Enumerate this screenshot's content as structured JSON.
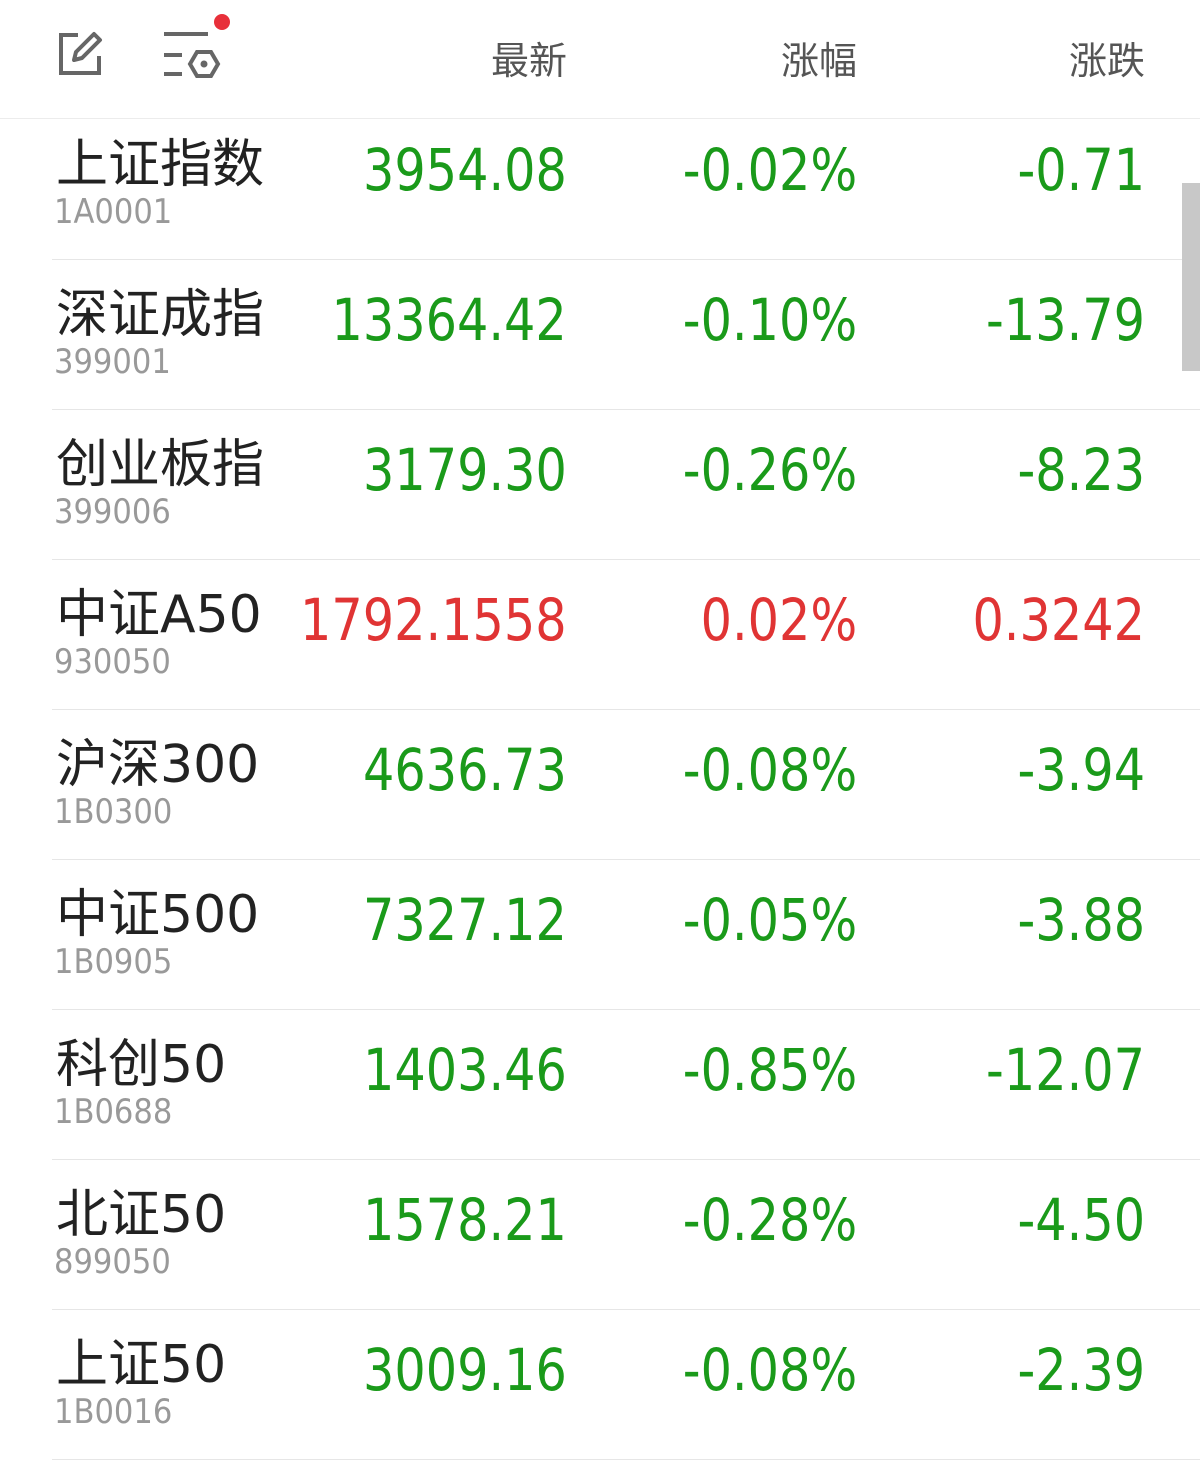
{
  "header": {
    "columns": [
      "最新",
      "涨幅",
      "涨跌"
    ],
    "edit_icon": "edit-icon",
    "settings_icon": "list-settings-icon",
    "notification_dot_color": "#e8303a"
  },
  "colors": {
    "down": "#1a9a1a",
    "up": "#e03434"
  },
  "rows": [
    {
      "name": "上证指数",
      "code": "1A0001",
      "price": "3954.08",
      "pct": "-0.02%",
      "change": "-0.71",
      "dir": "down"
    },
    {
      "name": "深证成指",
      "code": "399001",
      "price": "13364.42",
      "pct": "-0.10%",
      "change": "-13.79",
      "dir": "down"
    },
    {
      "name": "创业板指",
      "code": "399006",
      "price": "3179.30",
      "pct": "-0.26%",
      "change": "-8.23",
      "dir": "down"
    },
    {
      "name": "中证A50",
      "code": "930050",
      "price": "1792.1558",
      "pct": "0.02%",
      "change": "0.3242",
      "dir": "up"
    },
    {
      "name": "沪深300",
      "code": "1B0300",
      "price": "4636.73",
      "pct": "-0.08%",
      "change": "-3.94",
      "dir": "down"
    },
    {
      "name": "中证500",
      "code": "1B0905",
      "price": "7327.12",
      "pct": "-0.05%",
      "change": "-3.88",
      "dir": "down"
    },
    {
      "name": "科创50",
      "code": "1B0688",
      "price": "1403.46",
      "pct": "-0.85%",
      "change": "-12.07",
      "dir": "down"
    },
    {
      "name": "北证50",
      "code": "899050",
      "price": "1578.21",
      "pct": "-0.28%",
      "change": "-4.50",
      "dir": "down"
    },
    {
      "name": "上证50",
      "code": "1B0016",
      "price": "3009.16",
      "pct": "-0.08%",
      "change": "-2.39",
      "dir": "down"
    }
  ]
}
